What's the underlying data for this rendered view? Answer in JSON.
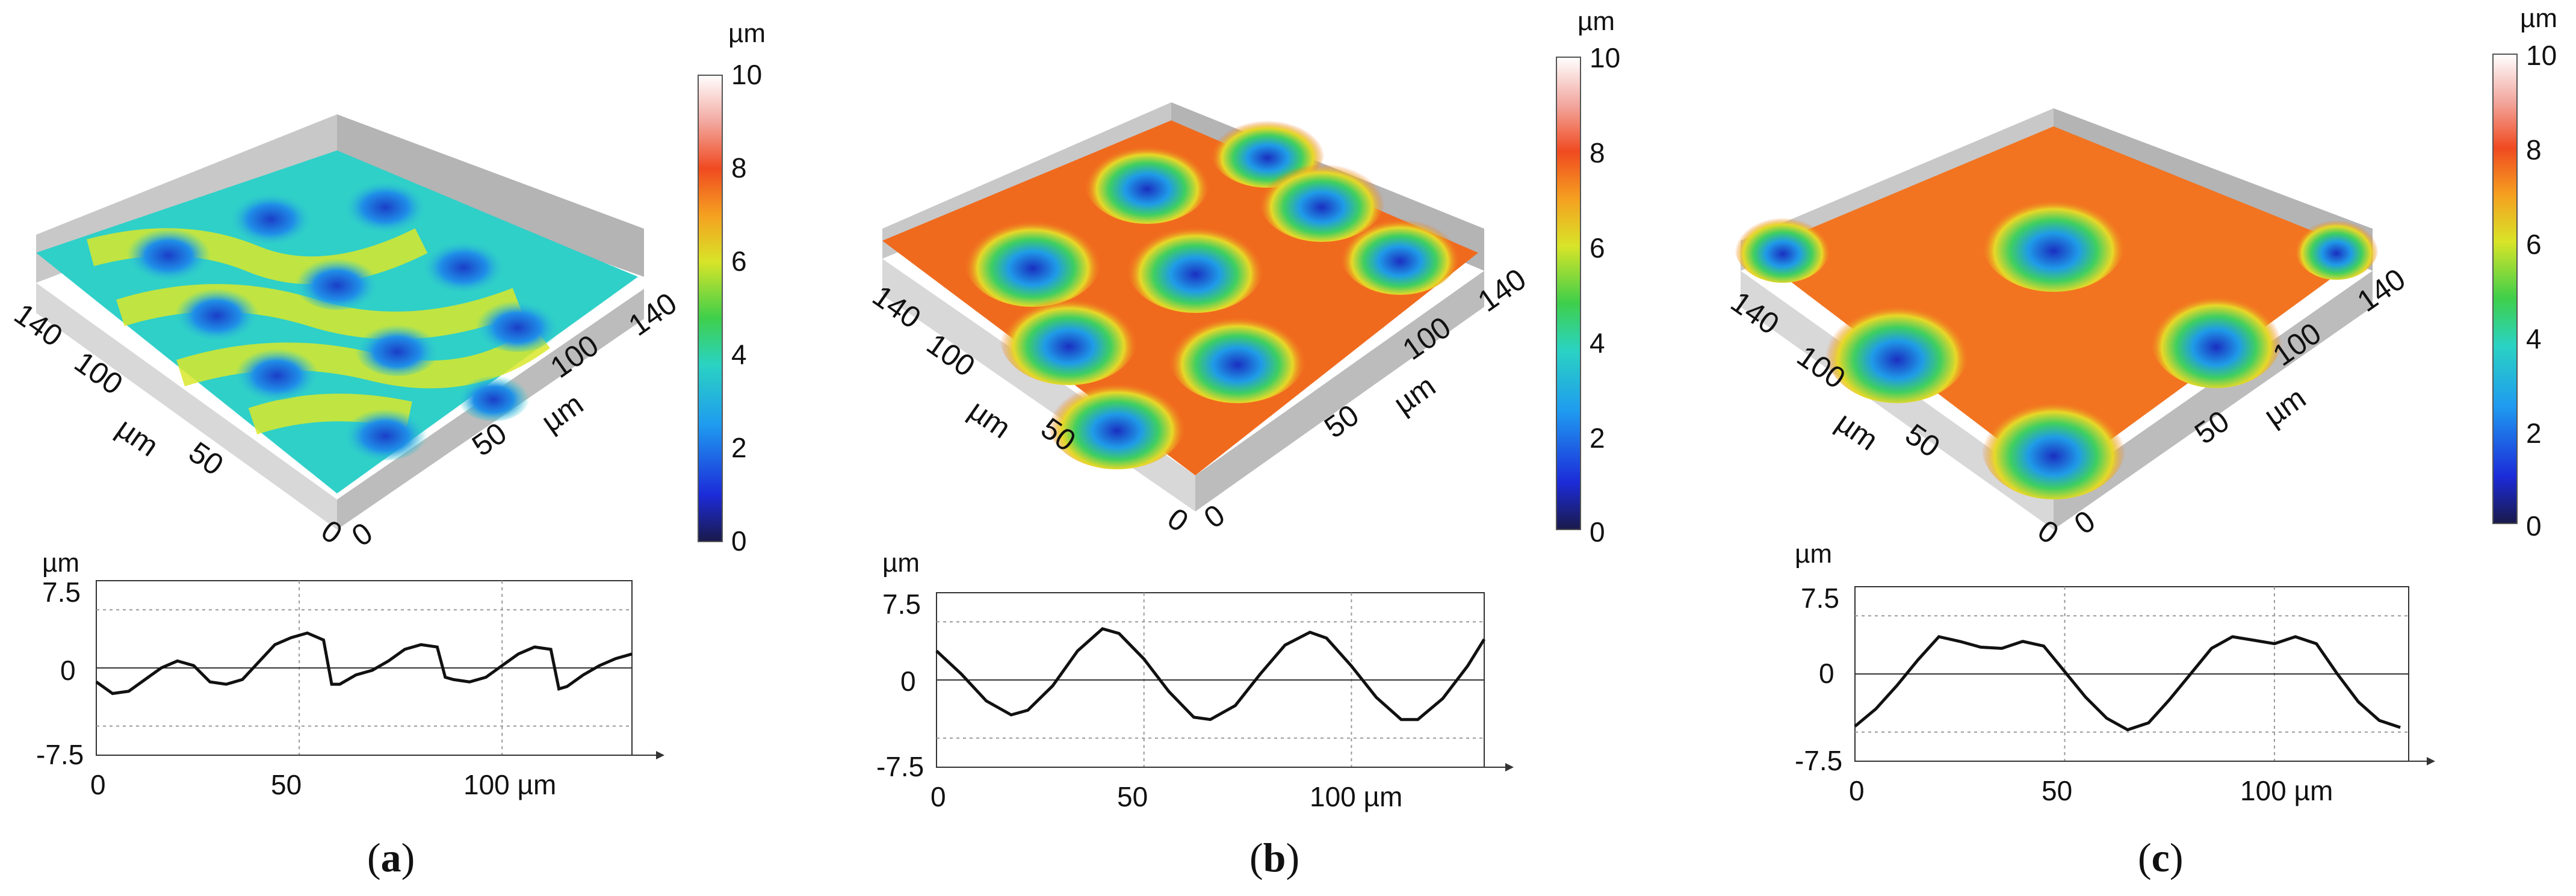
{
  "panels": [
    {
      "label": "a",
      "colorbar": {
        "unit": "µm",
        "ticks": [
          "0",
          "2",
          "4",
          "6",
          "8",
          "10"
        ],
        "min": 0,
        "max": 10
      },
      "surface": {
        "x_unit": "µm",
        "y_unit": "µm",
        "x_ticks": [
          "0",
          "50",
          "100",
          "140"
        ],
        "y_ticks": [
          "0",
          "50",
          "100",
          "140"
        ],
        "colors": {
          "base": "#2fd0c8",
          "ridge": "#d9e82a",
          "pit": "#1a3fc8"
        }
      },
      "profile": {
        "type": "line",
        "y_unit": "µm",
        "x_ticks": [
          "0",
          "50",
          "100 µm"
        ],
        "y_ticks": [
          "7.5",
          "0",
          "-7.5"
        ],
        "xlim": [
          0,
          132
        ],
        "ylim": [
          -7.5,
          7.5
        ],
        "x": [
          0,
          4,
          8,
          12,
          16,
          20,
          24,
          28,
          32,
          36,
          40,
          44,
          48,
          52,
          56,
          58,
          60,
          64,
          68,
          72,
          76,
          80,
          84,
          86,
          88,
          92,
          96,
          100,
          104,
          108,
          112,
          114,
          116,
          120,
          124,
          128,
          132
        ],
        "y": [
          -1.2,
          -2.2,
          -2.0,
          -1.0,
          0.0,
          0.6,
          0.2,
          -1.2,
          -1.4,
          -1.0,
          0.5,
          2.0,
          2.6,
          3.0,
          2.4,
          -1.4,
          -1.4,
          -0.6,
          -0.2,
          0.6,
          1.6,
          2.0,
          1.8,
          -0.8,
          -1.0,
          -1.2,
          -0.8,
          0.2,
          1.2,
          1.8,
          1.6,
          -1.8,
          -1.6,
          -0.6,
          0.2,
          0.8,
          1.2
        ]
      }
    },
    {
      "label": "b",
      "colorbar": {
        "unit": "µm",
        "ticks": [
          "0",
          "2",
          "4",
          "6",
          "8",
          "10"
        ],
        "min": 0,
        "max": 10
      },
      "surface": {
        "x_unit": "µm",
        "y_unit": "µm",
        "x_ticks": [
          "0",
          "50",
          "100",
          "140"
        ],
        "y_ticks": [
          "0",
          "50",
          "100",
          "140"
        ],
        "colors": {
          "base": "#f06a1e",
          "ridge": "#f08a20",
          "pit": "#1a3fc8"
        }
      },
      "profile": {
        "type": "line",
        "y_unit": "µm",
        "x_ticks": [
          "0",
          "50",
          "100 µm"
        ],
        "y_ticks": [
          "7.5",
          "0",
          "-7.5"
        ],
        "xlim": [
          0,
          132
        ],
        "ylim": [
          -7.5,
          7.5
        ],
        "x": [
          0,
          6,
          12,
          18,
          22,
          28,
          34,
          40,
          44,
          50,
          56,
          62,
          66,
          72,
          78,
          84,
          90,
          94,
          100,
          106,
          112,
          116,
          122,
          128,
          132
        ],
        "y": [
          2.5,
          0.5,
          -1.8,
          -3.0,
          -2.6,
          -0.5,
          2.5,
          4.4,
          4.0,
          1.8,
          -1.0,
          -3.2,
          -3.4,
          -2.2,
          0.5,
          3.0,
          4.1,
          3.6,
          1.2,
          -1.5,
          -3.4,
          -3.4,
          -1.6,
          1.2,
          3.5
        ]
      }
    },
    {
      "label": "c",
      "colorbar": {
        "unit": "µm",
        "ticks": [
          "0",
          "2",
          "4",
          "6",
          "8",
          "10"
        ],
        "min": 0,
        "max": 10
      },
      "surface": {
        "x_unit": "µm",
        "y_unit": "µm",
        "x_ticks": [
          "0",
          "50",
          "100",
          "140"
        ],
        "y_ticks": [
          "0",
          "50",
          "100",
          "140"
        ],
        "colors": {
          "base": "#f27420",
          "ridge": "#f59a40",
          "pit": "#1a3fc8"
        }
      },
      "profile": {
        "type": "line",
        "y_unit": "µm",
        "x_ticks": [
          "0",
          "50",
          "100 µm"
        ],
        "y_ticks": [
          "7.5",
          "0",
          "-7.5"
        ],
        "xlim": [
          0,
          132
        ],
        "ylim": [
          -7.5,
          7.5
        ],
        "x": [
          0,
          5,
          10,
          15,
          20,
          25,
          30,
          35,
          40,
          45,
          50,
          55,
          60,
          65,
          70,
          75,
          80,
          85,
          90,
          95,
          100,
          105,
          110,
          115,
          120,
          125,
          130
        ],
        "y": [
          -4.5,
          -3.0,
          -1.0,
          1.2,
          3.2,
          2.8,
          2.3,
          2.2,
          2.8,
          2.4,
          0.2,
          -2.0,
          -3.8,
          -4.8,
          -4.2,
          -2.2,
          0.0,
          2.2,
          3.2,
          2.9,
          2.6,
          3.2,
          2.6,
          0.0,
          -2.4,
          -4.0,
          -4.6
        ]
      }
    }
  ]
}
